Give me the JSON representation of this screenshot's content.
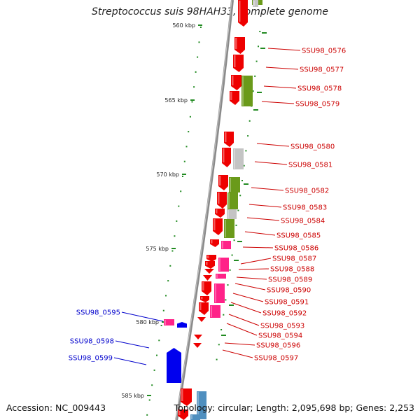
{
  "title": "Streptococcus suis 98HAH33, complete genome",
  "accession": "Accession: NC_009443",
  "summary": "Topology: circular; Length: 2,095,698 bp; Genes: 2,253",
  "colors": {
    "backbone": "#8a8a8a",
    "forward_cds": "#ee0000",
    "rna": "#ff2288",
    "reverse_cds": "#0000ee",
    "cog_green": "#6a9a1a",
    "cog_grey": "#c4c4c4",
    "cog_blue": "#4f8fbf",
    "tick": "#228b22",
    "label_forward": "#cc0000",
    "label_reverse": "#0000cc"
  },
  "kbp_labels": [
    "560 kbp",
    "565 kbp",
    "570 kbp",
    "575 kbp",
    "580 kbp",
    "585 kbp"
  ],
  "forward_labels": [
    "SSU98_0576",
    "SSU98_0577",
    "SSU98_0578",
    "SSU98_0579",
    "SSU98_0580",
    "SSU98_0581",
    "SSU98_0582",
    "SSU98_0583",
    "SSU98_0584",
    "SSU98_0585",
    "SSU98_0586",
    "SSU98_0587",
    "SSU98_0588",
    "SSU98_0589",
    "SSU98_0590",
    "SSU98_0591",
    "SSU98_0592",
    "SSU98_0593",
    "SSU98_0594",
    "SSU98_0596",
    "SSU98_0597"
  ],
  "reverse_labels": [
    "SSU98_0595",
    "SSU98_0598",
    "SSU98_0599"
  ]
}
